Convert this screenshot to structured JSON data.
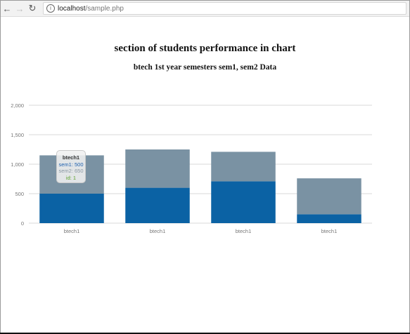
{
  "browser": {
    "host": "localhost",
    "path": "/sample.php",
    "back_icon": "arrow-left-icon",
    "forward_icon": "arrow-right-icon",
    "reload_icon": "reload-icon",
    "info_icon": "info-icon"
  },
  "page": {
    "title": "section of students performance in chart",
    "subtitle": "btech 1st year semesters sem1, sem2 Data"
  },
  "chart_data": {
    "type": "bar",
    "stacked": true,
    "categories": [
      "btech1",
      "btech1",
      "btech1",
      "btech1"
    ],
    "series": [
      {
        "name": "sem1",
        "values": [
          500,
          600,
          710,
          150
        ],
        "color": "#0b62a4"
      },
      {
        "name": "sem2",
        "values": [
          650,
          650,
          500,
          610
        ],
        "color": "#7a92a3"
      }
    ],
    "yticks": [
      "0",
      "500",
      "1,000",
      "1,500",
      "2,000"
    ],
    "ylim": [
      0,
      2000
    ],
    "grid": true,
    "tooltip": {
      "title": "btech1",
      "sem1": "sem1: 500",
      "sem2": "sem2: 650",
      "id": "id: 1"
    }
  }
}
